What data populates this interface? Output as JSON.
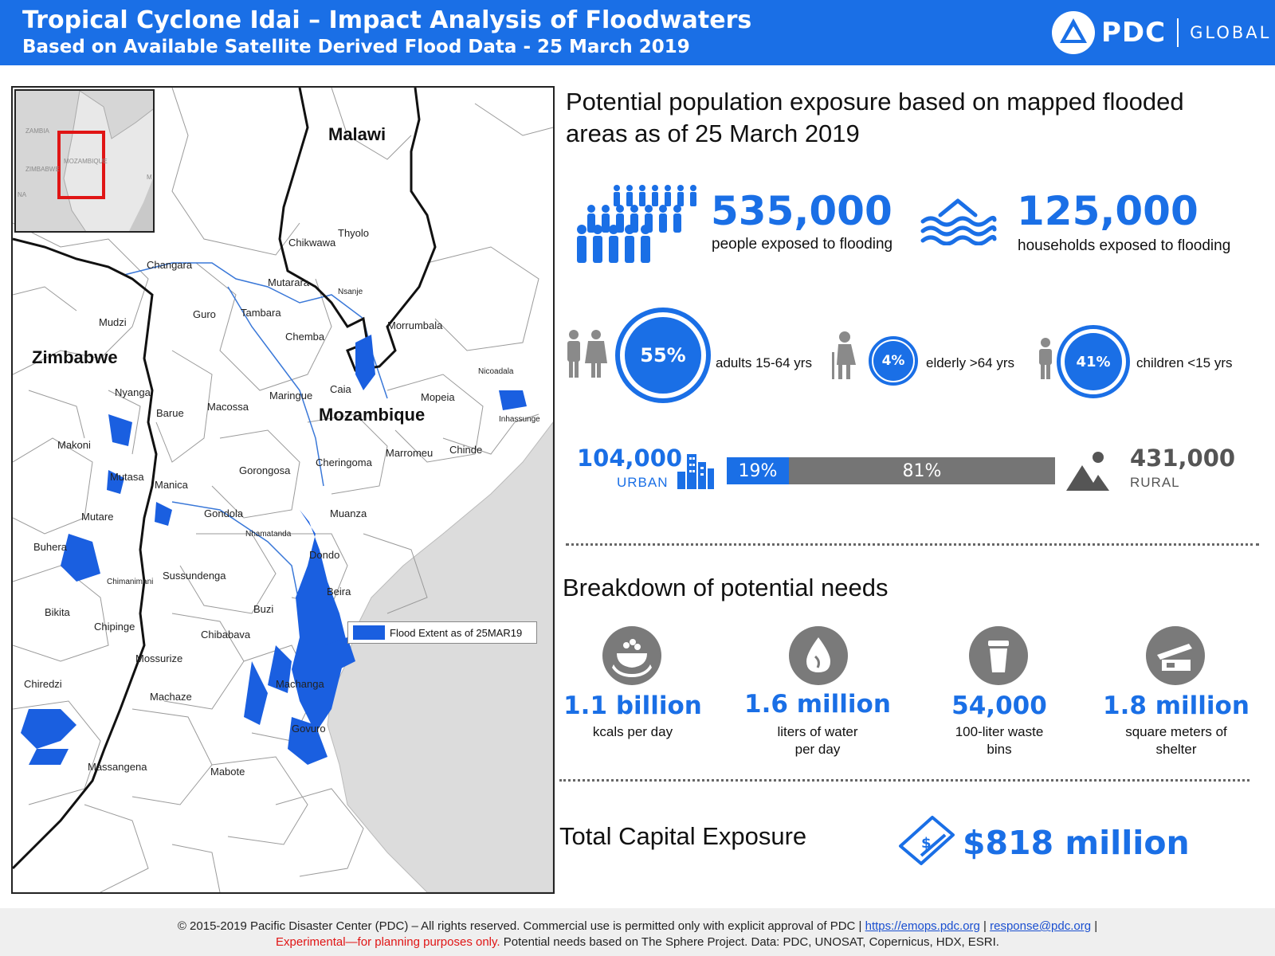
{
  "header": {
    "title": "Tropical Cyclone Idai – Impact Analysis of Floodwaters",
    "subtitle": "Based on Available Satellite Derived Flood Data - 25 March 2019",
    "logo_name": "PDC",
    "logo_global": "GLOBAL",
    "background_color": "#1a6fe6"
  },
  "map": {
    "inset_labels": [
      "ZAMBIA",
      "MOZAMBIQUE",
      "ZIMBABWE",
      "NA",
      "M"
    ],
    "countries": [
      "Malawi",
      "Zimbabwe",
      "Mozambique"
    ],
    "places": [
      "Changara",
      "Chikwawa",
      "Thyolo",
      "Mutarara",
      "Nsanje",
      "Tambara",
      "Guro",
      "Mudzi",
      "Chemba",
      "Morrumbala",
      "Nyanga",
      "Maringue",
      "Caia",
      "Mopeia",
      "Barue",
      "Macossa",
      "Nicoadala",
      "Inhassunge",
      "Makoni",
      "Marromeu",
      "Chinde",
      "Cheringoma",
      "Mutasa",
      "Gorongosa",
      "Manica",
      "Mutare",
      "Gondola",
      "Muanza",
      "Nhamatanda",
      "Buhera",
      "Dondo",
      "Chimanimani",
      "Sussundenga",
      "Beira",
      "Buzi",
      "Bikita",
      "Chipinge",
      "Chibabava",
      "Mossurize",
      "Chiredzi",
      "Machanga",
      "Machaze",
      "Govuro",
      "Massangena",
      "Mabote"
    ],
    "legend_label": "Flood Extent as of 25MAR19",
    "flood_color": "#1a5fe0"
  },
  "exposure": {
    "title": "Potential population exposure based on mapped flooded areas as of 25 March 2019",
    "people_value": "535,000",
    "people_caption": "people exposed to flooding",
    "households_value": "125,000",
    "households_caption": "households exposed to flooding",
    "age_groups": [
      {
        "pct": "55%",
        "label": "adults 15-64 yrs",
        "value": 0.55
      },
      {
        "pct": "4%",
        "label": "elderly >64 yrs",
        "value": 0.04
      },
      {
        "pct": "41%",
        "label": "children <15 yrs",
        "value": 0.41
      }
    ],
    "urban_value": "104,000",
    "urban_label": "URBAN",
    "urban_pct": "19%",
    "rural_value": "431,000",
    "rural_label": "RURAL",
    "rural_pct": "81%",
    "urban_share": 0.19,
    "accent_color": "#1a6fe6",
    "rural_color": "#757575"
  },
  "needs": {
    "title": "Breakdown of potential needs",
    "items": [
      {
        "value": "1.1 billion",
        "caption": "kcals per day",
        "icon": "food-icon"
      },
      {
        "value": "1.6 million",
        "caption": "liters of water per day",
        "icon": "water-icon"
      },
      {
        "value": "54,000",
        "caption": "100-liter waste bins",
        "icon": "waste-bin-icon"
      },
      {
        "value": "1.8 million",
        "caption": "square meters of shelter",
        "icon": "shelter-icon"
      }
    ]
  },
  "capital": {
    "title": "Total Capital Exposure",
    "value": "$818 million"
  },
  "footer": {
    "copyright": "© 2015-2019 Pacific Disaster Center (PDC) – All rights reserved. Commercial use is permitted only with explicit approval of PDC |",
    "link1": "https://emops.pdc.org",
    "sep": "|",
    "link2": "response@pdc.org",
    "end": "|",
    "experimental": "Experimental—for planning purposes only.",
    "sources": "Potential needs based on The Sphere Project. Data: PDC, UNOSAT, Copernicus, HDX, ESRI."
  }
}
